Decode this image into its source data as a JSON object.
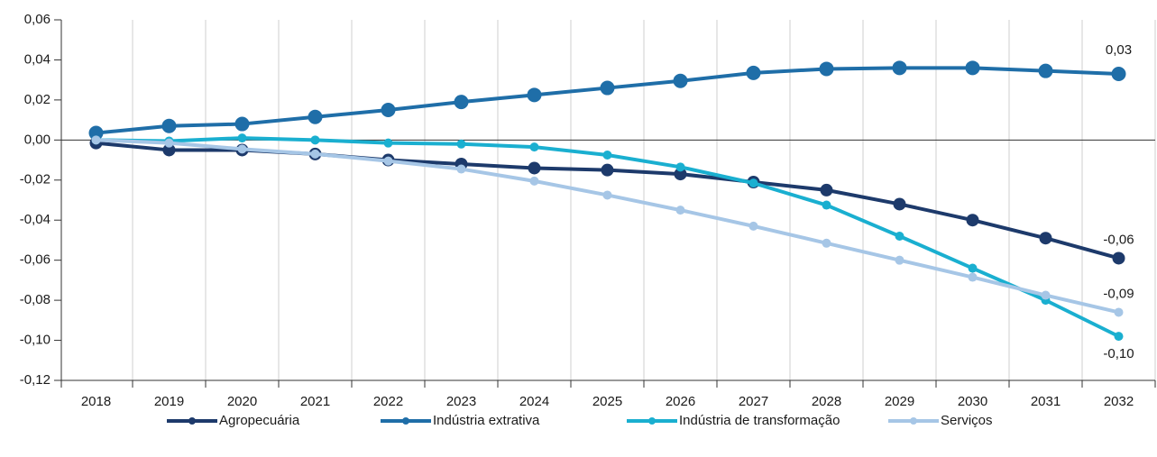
{
  "chart_data": {
    "type": "line",
    "categories": [
      "2018",
      "2019",
      "2020",
      "2021",
      "2022",
      "2023",
      "2024",
      "2025",
      "2026",
      "2027",
      "2028",
      "2029",
      "2030",
      "2031",
      "2032"
    ],
    "ylim": [
      -0.12,
      0.06
    ],
    "yticks": [
      {
        "value": -0.12,
        "label": "-0,12"
      },
      {
        "value": -0.1,
        "label": "-0,10"
      },
      {
        "value": -0.08,
        "label": "-0,08"
      },
      {
        "value": -0.06,
        "label": "-0,06"
      },
      {
        "value": -0.04,
        "label": "-0,04"
      },
      {
        "value": -0.02,
        "label": "-0,02"
      },
      {
        "value": 0,
        "label": "0,00"
      },
      {
        "value": 0.02,
        "label": "0,02"
      },
      {
        "value": 0.04,
        "label": "0,04"
      },
      {
        "value": 0.06,
        "label": "0,06"
      }
    ],
    "grid": true,
    "legend": "bottom",
    "series": [
      {
        "name": "Agropecuária",
        "color": "#1d3a6b",
        "values": [
          -0.0015,
          -0.005,
          -0.005,
          -0.007,
          -0.01,
          -0.012,
          -0.014,
          -0.015,
          -0.017,
          -0.021,
          -0.025,
          -0.032,
          -0.04,
          -0.049,
          -0.059
        ],
        "value_labels": [
          null,
          null,
          null,
          null,
          null,
          null,
          null,
          null,
          null,
          null,
          null,
          null,
          null,
          null,
          "-0,06"
        ]
      },
      {
        "name": "Indústria extrativa",
        "color": "#1f6ea8",
        "values": [
          0.0035,
          0.007,
          0.008,
          0.0115,
          0.015,
          0.019,
          0.0225,
          0.026,
          0.0295,
          0.0335,
          0.0355,
          0.036,
          0.036,
          0.0345,
          0.033
        ],
        "value_labels": [
          null,
          null,
          null,
          null,
          null,
          null,
          null,
          null,
          null,
          null,
          null,
          null,
          null,
          null,
          "0,03"
        ]
      },
      {
        "name": "Indústria de transformação",
        "color": "#1aafd0",
        "values": [
          0,
          -0.0005,
          0.001,
          0,
          -0.0015,
          -0.002,
          -0.0035,
          -0.0075,
          -0.0135,
          -0.0215,
          -0.0325,
          -0.048,
          -0.064,
          -0.08,
          -0.098
        ],
        "value_labels": [
          null,
          null,
          null,
          null,
          null,
          null,
          null,
          null,
          null,
          null,
          null,
          null,
          null,
          null,
          "-0,10"
        ]
      },
      {
        "name": "Serviços",
        "color": "#a6c6e6",
        "values": [
          0,
          -0.0015,
          -0.0045,
          -0.007,
          -0.0105,
          -0.0145,
          -0.0205,
          -0.0275,
          -0.035,
          -0.043,
          -0.0515,
          -0.06,
          -0.0685,
          -0.0775,
          -0.086
        ],
        "value_labels": [
          null,
          null,
          null,
          null,
          null,
          null,
          null,
          null,
          null,
          null,
          null,
          null,
          null,
          null,
          "-0,09"
        ]
      }
    ]
  }
}
